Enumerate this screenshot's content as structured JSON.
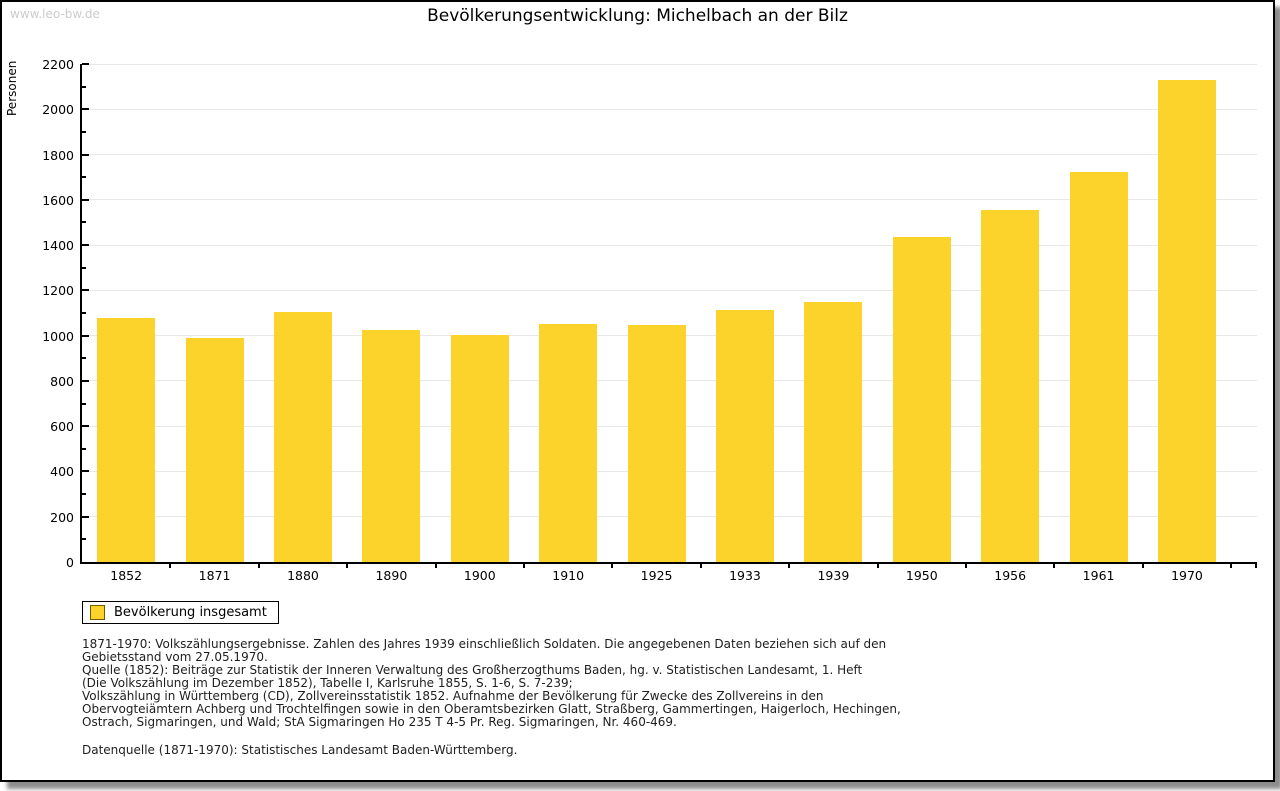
{
  "page": {
    "watermark": "www.leo-bw.de",
    "title": "Bevölkerungsentwicklung: Michelbach an der Bilz"
  },
  "chart_data": {
    "type": "bar",
    "title": "Bevölkerungsentwicklung: Michelbach an der Bilz",
    "xlabel": "",
    "ylabel": "Personen",
    "categories": [
      "1852",
      "1871",
      "1880",
      "1890",
      "1900",
      "1910",
      "1925",
      "1933",
      "1939",
      "1950",
      "1956",
      "1961",
      "1970"
    ],
    "values": [
      1080,
      988,
      1106,
      1026,
      1004,
      1050,
      1045,
      1112,
      1150,
      1437,
      1556,
      1722,
      2131
    ],
    "ylim": [
      0,
      2200
    ],
    "yticks": [
      0,
      200,
      400,
      600,
      800,
      1000,
      1200,
      1400,
      1600,
      1800,
      2000,
      2200
    ],
    "ytick_step": 200,
    "y_minor_step": 100,
    "grid": true,
    "legend": {
      "label": "Bevölkerung insgesamt",
      "position": "below-left"
    }
  },
  "colors": {
    "bar": "#FBD32B",
    "grid": "#E8E8E8",
    "axis": "#000000",
    "swatch_border": "#6E5C00",
    "watermark": "#CCCCCC"
  },
  "footnotes": {
    "lines": [
      "1871-1970: Volkszählungsergebnisse. Zahlen des Jahres 1939 einschließlich Soldaten. Die angegebenen Daten beziehen sich auf den",
      "Gebietsstand vom 27.05.1970.",
      "Quelle (1852): Beiträge zur Statistik der Inneren Verwaltung des Großherzogthums Baden, hg. v. Statistischen Landesamt, 1. Heft",
      "(Die Volkszählung im Dezember 1852), Tabelle I, Karlsruhe 1855, S. 1-6, S. 7-239;",
      "Volkszählung in Württemberg (CD), Zollvereinsstatistik 1852. Aufnahme der Bevölkerung für Zwecke des Zollvereins in den",
      "Obervogteiämtern Achberg und Trochtelfingen sowie in den Oberamtsbezirken Glatt, Straßberg, Gammertingen, Haigerloch, Hechingen,",
      "Ostrach, Sigmaringen, und Wald; StA Sigmaringen Ho 235 T 4-5 Pr. Reg. Sigmaringen, Nr. 460-469."
    ],
    "datasource": "Datenquelle (1871-1970): Statistisches Landesamt Baden-Württemberg."
  }
}
